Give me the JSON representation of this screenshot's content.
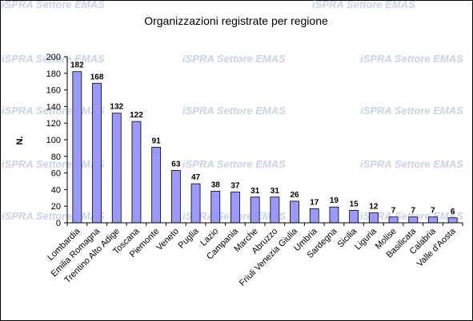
{
  "watermark": "iSPRA Settore EMAS",
  "chart_data": {
    "type": "bar",
    "title": "Organizzazioni registrate per regione",
    "xlabel": "",
    "ylabel": "N.",
    "ylim": [
      0,
      200
    ],
    "yticks": [
      0,
      20,
      40,
      60,
      80,
      100,
      120,
      140,
      160,
      180,
      200
    ],
    "grid": false,
    "bar_color": "#9999ff",
    "categories": [
      "Lombardia",
      "Emilia Romagna",
      "Trentino Alto Adige",
      "Toscana",
      "Piemonte",
      "Veneto",
      "Puglia",
      "Lazio",
      "Campania",
      "Marche",
      "Abruzzo",
      "Friuli Venezia Giulia",
      "Umbria",
      "Sardegna",
      "Sicilia",
      "Liguria",
      "Molise",
      "Basilicata",
      "Calabria",
      "Valle d'Aosta"
    ],
    "values": [
      182,
      168,
      132,
      122,
      91,
      63,
      47,
      38,
      37,
      31,
      31,
      26,
      17,
      19,
      15,
      12,
      7,
      7,
      7,
      6
    ],
    "data_labels": [
      "182",
      "168",
      "132",
      "122",
      "91",
      "63",
      "47",
      "38",
      "37",
      "31",
      "31",
      "26",
      "17",
      "19",
      "15",
      "12",
      "7",
      "7",
      "7",
      "6"
    ]
  }
}
